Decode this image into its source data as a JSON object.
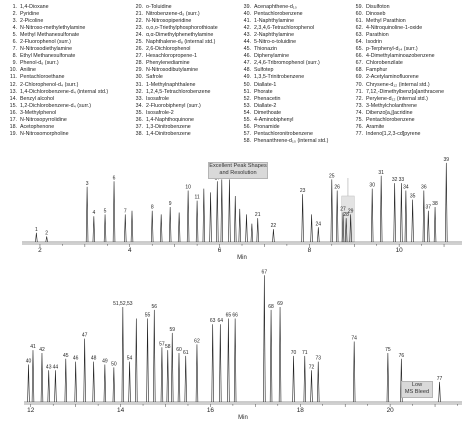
{
  "compound_list": [
    {
      "n": "1.",
      "name": "1,4-Dioxane"
    },
    {
      "n": "2.",
      "name": "Pyridine"
    },
    {
      "n": "3.",
      "name": "2-Picoline"
    },
    {
      "n": "4.",
      "name": "N-Nitroso-methylethylamine"
    },
    {
      "n": "5.",
      "name": "Methyl Methanesulfonate"
    },
    {
      "n": "6.",
      "name": "2-Fluorophenol (surr.)"
    },
    {
      "n": "7.",
      "name": "N-Nitrosodiethylamine"
    },
    {
      "n": "8.",
      "name": "Ethyl Methanesulfonate"
    },
    {
      "n": "9.",
      "name": "Phenol-d₆ (surr.)"
    },
    {
      "n": "10.",
      "name": "Aniline"
    },
    {
      "n": "11.",
      "name": "Pentachloroethane"
    },
    {
      "n": "12.",
      "name": "2-Chlorophenol-d₄ (surr.)"
    },
    {
      "n": "13.",
      "name": "1,4-Dichlorobenzene-d₄ (internal std.)"
    },
    {
      "n": "14.",
      "name": "Benzyl alcohol"
    },
    {
      "n": "15.",
      "name": "1,2-Dichlorobenzene-d₄ (surr.)"
    },
    {
      "n": "16.",
      "name": "3-Methylphenol"
    },
    {
      "n": "17.",
      "name": "N-Nitrosopyrrolidine"
    },
    {
      "n": "18.",
      "name": "Acetophenone"
    },
    {
      "n": "19.",
      "name": "N-Nitrosomorpholine"
    },
    {
      "n": "20.",
      "name": "o-Toluidine"
    },
    {
      "n": "21.",
      "name": "Nitrobenzene-d₅ (surr.)"
    },
    {
      "n": "22.",
      "name": "N-Nitrosopiperidine"
    },
    {
      "n": "23.",
      "name": "o,o,o-Triethylphosphorothioate"
    },
    {
      "n": "24.",
      "name": "α,α-Dimethylphenethylamine"
    },
    {
      "n": "25.",
      "name": "Naphthalene-d₈ (internal std.)"
    },
    {
      "n": "26.",
      "name": "2,6-Dichlorophenol"
    },
    {
      "n": "27.",
      "name": "Hexachloropropene-1"
    },
    {
      "n": "28.",
      "name": "Phenylenediamine"
    },
    {
      "n": "29.",
      "name": "N-Nitrosodibutylamine"
    },
    {
      "n": "30.",
      "name": "Safrole"
    },
    {
      "n": "31.",
      "name": "1-Methylnaphthalene"
    },
    {
      "n": "32.",
      "name": "1,2,4,5-Tetrachlorobenzene"
    },
    {
      "n": "33.",
      "name": "Isosafrole"
    },
    {
      "n": "34.",
      "name": "2-Fluorobiphenyl (surr.)"
    },
    {
      "n": "35.",
      "name": "Isosafrole-2"
    },
    {
      "n": "36.",
      "name": "1,4-Naphthoquinone"
    },
    {
      "n": "37.",
      "name": "1,3-Dinitrobenzene"
    },
    {
      "n": "38.",
      "name": "1,4-Dinitrobenzene"
    },
    {
      "n": "39.",
      "name": "Acenaphthene-d₁₀"
    },
    {
      "n": "40.",
      "name": "Pentachlorobenzene"
    },
    {
      "n": "41.",
      "name": "1-Naphthylamine"
    },
    {
      "n": "42.",
      "name": "2,3,4,6-Tetrachlorophenol"
    },
    {
      "n": "43.",
      "name": "2-Naphthylamine"
    },
    {
      "n": "44.",
      "name": "5-Nitro-o-toluidine"
    },
    {
      "n": "45.",
      "name": "Thionazin"
    },
    {
      "n": "46.",
      "name": "Diphenylamine"
    },
    {
      "n": "47.",
      "name": "2,4,6-Tribromophenol (surr.)"
    },
    {
      "n": "48.",
      "name": "Sulfotep"
    },
    {
      "n": "49.",
      "name": "1,3,5-Trinitrobenzene"
    },
    {
      "n": "50.",
      "name": "Diallate-1"
    },
    {
      "n": "51.",
      "name": "Phorate"
    },
    {
      "n": "52.",
      "name": "Phenacetin"
    },
    {
      "n": "53.",
      "name": "Diallate-2"
    },
    {
      "n": "54.",
      "name": "Dimethoate"
    },
    {
      "n": "55.",
      "name": "4-Aminobiphenyl"
    },
    {
      "n": "56.",
      "name": "Pronamide"
    },
    {
      "n": "57.",
      "name": "Pentachloronitrobenzene"
    },
    {
      "n": "58.",
      "name": "Phenanthrene-d₁₀ (internal std.)"
    },
    {
      "n": "59.",
      "name": "Disulfoton"
    },
    {
      "n": "60.",
      "name": "Dinoseb"
    },
    {
      "n": "61.",
      "name": "Methyl Parathion"
    },
    {
      "n": "62.",
      "name": "4-Nitroquinoline-1-oxide"
    },
    {
      "n": "63.",
      "name": "Parathion"
    },
    {
      "n": "64.",
      "name": "Isodrin"
    },
    {
      "n": "65.",
      "name": "p-Terphenyl-d₁₄ (surr.)"
    },
    {
      "n": "66.",
      "name": "4-Dimethylaminoazobenzene"
    },
    {
      "n": "67.",
      "name": "Chlorobenzilate"
    },
    {
      "n": "68.",
      "name": "Famphur"
    },
    {
      "n": "69.",
      "name": "2-Acetylaminofluorene"
    },
    {
      "n": "70.",
      "name": "Chrysene-d₁₂ (internal std.)"
    },
    {
      "n": "71.",
      "name": "7,12,-Dimethylbenz[a]anthracene"
    },
    {
      "n": "72.",
      "name": "Perylene-d₁₂ (internal std.)"
    },
    {
      "n": "73.",
      "name": "3-Methylcholanthrene"
    },
    {
      "n": "74.",
      "name": "Dibenzo[a,j]acridine"
    },
    {
      "n": "75.",
      "name": "Pentachlorobenzene"
    },
    {
      "n": "76.",
      "name": "Aramite"
    },
    {
      "n": "77.",
      "name": "Indeno[1,2,3-cd]pyrene"
    }
  ],
  "annotations": {
    "peak_shapes": [
      "Excellent Peak Shapes",
      "and Resolution"
    ],
    "bleed": [
      "Low",
      "MS Bleed"
    ]
  },
  "chart_data": [
    {
      "type": "line",
      "xlabel": "Min",
      "xlim": [
        1.6,
        11.4
      ],
      "ylim": [
        0,
        100
      ],
      "xticks": [
        2,
        4,
        6,
        8,
        10
      ],
      "peaks": [
        {
          "label": "1",
          "x": 1.92,
          "y": 10
        },
        {
          "label": "2",
          "x": 2.15,
          "y": 6
        },
        {
          "label": "3",
          "x": 3.05,
          "y": 60
        },
        {
          "label": "4",
          "x": 3.2,
          "y": 28
        },
        {
          "label": "5",
          "x": 3.45,
          "y": 30
        },
        {
          "label": "6",
          "x": 3.65,
          "y": 66
        },
        {
          "label": "7",
          "x": 3.9,
          "y": 30
        },
        {
          "label": "",
          "x": 4.05,
          "y": 34
        },
        {
          "label": "8",
          "x": 4.5,
          "y": 34
        },
        {
          "label": "",
          "x": 4.7,
          "y": 30
        },
        {
          "label": "9",
          "x": 4.9,
          "y": 38
        },
        {
          "label": "",
          "x": 5.1,
          "y": 32
        },
        {
          "label": "10",
          "x": 5.3,
          "y": 56
        },
        {
          "label": "11",
          "x": 5.5,
          "y": 45
        },
        {
          "label": "",
          "x": 5.65,
          "y": 58
        },
        {
          "label": "",
          "x": 5.8,
          "y": 54
        },
        {
          "label": "17",
          "x": 5.95,
          "y": 66
        },
        {
          "label": "18",
          "x": 6.05,
          "y": 68
        },
        {
          "label": "19",
          "x": 6.22,
          "y": 68
        },
        {
          "label": "",
          "x": 6.35,
          "y": 50
        },
        {
          "label": "",
          "x": 6.45,
          "y": 36
        },
        {
          "label": "",
          "x": 6.6,
          "y": 30
        },
        {
          "label": "",
          "x": 6.72,
          "y": 20
        },
        {
          "label": "21",
          "x": 6.85,
          "y": 26
        },
        {
          "label": "22",
          "x": 7.2,
          "y": 14
        },
        {
          "label": "23",
          "x": 7.85,
          "y": 52
        },
        {
          "label": "",
          "x": 8.05,
          "y": 30
        },
        {
          "label": "24",
          "x": 8.2,
          "y": 16
        },
        {
          "label": "25",
          "x": 8.5,
          "y": 68
        },
        {
          "label": "26",
          "x": 8.62,
          "y": 56
        },
        {
          "label": "27",
          "x": 8.75,
          "y": 32
        },
        {
          "label": "28",
          "x": 8.82,
          "y": 26
        },
        {
          "label": "29",
          "x": 8.92,
          "y": 30
        },
        {
          "label": "30",
          "x": 9.4,
          "y": 58
        },
        {
          "label": "31",
          "x": 9.6,
          "y": 72
        },
        {
          "label": "32",
          "x": 9.9,
          "y": 64
        },
        {
          "label": "33",
          "x": 10.05,
          "y": 64
        },
        {
          "label": "34",
          "x": 10.15,
          "y": 56
        },
        {
          "label": "35",
          "x": 10.3,
          "y": 46
        },
        {
          "label": "36",
          "x": 10.55,
          "y": 56
        },
        {
          "label": "37",
          "x": 10.65,
          "y": 34
        },
        {
          "label": "38",
          "x": 10.8,
          "y": 38
        },
        {
          "label": "39",
          "x": 11.05,
          "y": 86
        }
      ]
    },
    {
      "type": "line",
      "xlabel": "Min",
      "xlim": [
        11.85,
        21.6
      ],
      "ylim": [
        0,
        100
      ],
      "xticks": [
        12,
        14,
        16,
        18,
        20
      ],
      "peaks": [
        {
          "label": "40",
          "x": 11.95,
          "y": 26
        },
        {
          "label": "41",
          "x": 12.05,
          "y": 36
        },
        {
          "label": "42",
          "x": 12.25,
          "y": 34
        },
        {
          "label": "43",
          "x": 12.4,
          "y": 22
        },
        {
          "label": "44",
          "x": 12.55,
          "y": 22
        },
        {
          "label": "45",
          "x": 12.78,
          "y": 30
        },
        {
          "label": "46",
          "x": 13.0,
          "y": 28
        },
        {
          "label": "47",
          "x": 13.2,
          "y": 44
        },
        {
          "label": "48",
          "x": 13.4,
          "y": 28
        },
        {
          "label": "49",
          "x": 13.65,
          "y": 26
        },
        {
          "label": "50",
          "x": 13.85,
          "y": 24
        },
        {
          "label": "51,52,53",
          "x": 14.05,
          "y": 66
        },
        {
          "label": "54",
          "x": 14.2,
          "y": 28
        },
        {
          "label": "",
          "x": 14.35,
          "y": 58
        },
        {
          "label": "55",
          "x": 14.6,
          "y": 58
        },
        {
          "label": "56",
          "x": 14.75,
          "y": 64
        },
        {
          "label": "57",
          "x": 14.92,
          "y": 38
        },
        {
          "label": "58",
          "x": 15.05,
          "y": 36
        },
        {
          "label": "59",
          "x": 15.15,
          "y": 48
        },
        {
          "label": "60",
          "x": 15.3,
          "y": 34
        },
        {
          "label": "61",
          "x": 15.45,
          "y": 32
        },
        {
          "label": "62",
          "x": 15.7,
          "y": 40
        },
        {
          "label": "63",
          "x": 16.05,
          "y": 54
        },
        {
          "label": "64",
          "x": 16.22,
          "y": 54
        },
        {
          "label": "65",
          "x": 16.4,
          "y": 58
        },
        {
          "label": "66",
          "x": 16.55,
          "y": 58
        },
        {
          "label": "67",
          "x": 17.2,
          "y": 88
        },
        {
          "label": "68",
          "x": 17.35,
          "y": 64
        },
        {
          "label": "69",
          "x": 17.55,
          "y": 66
        },
        {
          "label": "70",
          "x": 17.85,
          "y": 32
        },
        {
          "label": "71",
          "x": 18.1,
          "y": 32
        },
        {
          "label": "72",
          "x": 18.25,
          "y": 22
        },
        {
          "label": "73",
          "x": 18.4,
          "y": 28
        },
        {
          "label": "74",
          "x": 19.2,
          "y": 42
        },
        {
          "label": "75",
          "x": 19.95,
          "y": 34
        },
        {
          "label": "76",
          "x": 20.25,
          "y": 30
        },
        {
          "label": "77",
          "x": 21.1,
          "y": 14
        }
      ]
    }
  ]
}
